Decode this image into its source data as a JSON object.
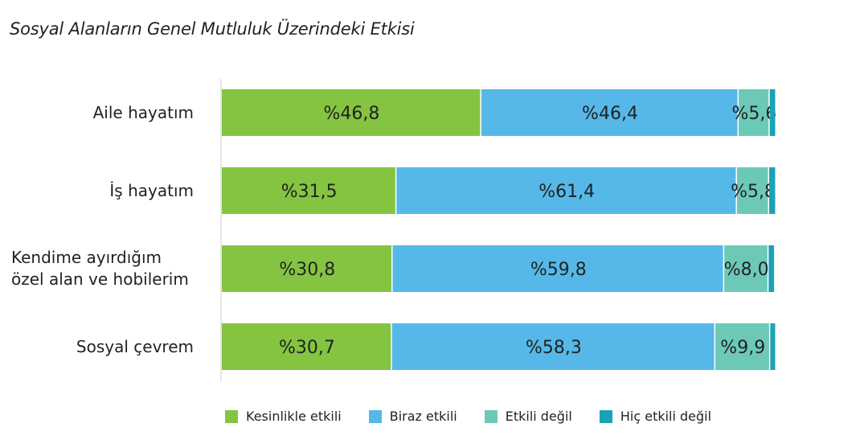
{
  "title": "Sosyal Alanların Genel Mutluluk Üzerindeki Etkisi",
  "chart_data": {
    "type": "bar",
    "orientation": "horizontal",
    "stacked": true,
    "categories": [
      "Aile hayatım",
      "İş hayatım",
      "Kendime ayırdığım özel alan ve hobilerim",
      "Sosyal çevrem"
    ],
    "category_lines": [
      [
        "Aile hayatım"
      ],
      [
        "İş hayatım"
      ],
      [
        "Kendime ayırdığım",
        "özel alan ve hobilerim"
      ],
      [
        "Sosyal çevrem"
      ]
    ],
    "series": [
      {
        "name": "Kesinlikle etkili",
        "color": "#84c441",
        "values": [
          46.8,
          31.5,
          30.8,
          30.7
        ],
        "labels": [
          "%46,8",
          "%31,5",
          "%30,8",
          "%30,7"
        ]
      },
      {
        "name": "Biraz etkili",
        "color": "#55b8e8",
        "values": [
          46.4,
          61.4,
          59.8,
          58.3
        ],
        "labels": [
          "%46,4",
          "%61,4",
          "%59,8",
          "%58,3"
        ]
      },
      {
        "name": "Etkili değil",
        "color": "#6cc9b7",
        "values": [
          5.6,
          5.8,
          8.0,
          9.9
        ],
        "labels": [
          "%5,6",
          "%5,8",
          "%8,0",
          "%9,9"
        ]
      },
      {
        "name": "Hiç etkili değil",
        "color": "#1aa3b5",
        "values": [
          1.2,
          1.3,
          1.2,
          1.1
        ],
        "labels": [
          "",
          "",
          "",
          ""
        ]
      }
    ],
    "xlim": [
      0,
      100
    ],
    "legend_position": "bottom"
  }
}
